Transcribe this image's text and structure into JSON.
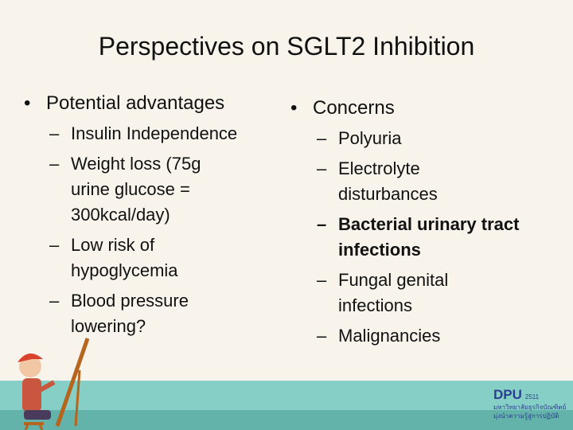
{
  "slide": {
    "title": "Perspectives on SGLT2 Inhibition",
    "left": {
      "heading": "Potential advantages",
      "items": [
        "Insulin Independence",
        "Weight loss (75g urine glucose = 300kcal/day)",
        "Low risk of hypoglycemia",
        "Blood pressure lowering?"
      ]
    },
    "right": {
      "heading": "Concerns",
      "items": [
        "Polyuria",
        "Electrolyte disturbances",
        "Bacterial urinary tract infections",
        "Fungal genital infections",
        "Malignancies"
      ]
    },
    "logo": {
      "name": "DPU",
      "year": "2511",
      "line1": "มหาวิทยาลัยธุรกิจบัณฑิตย์",
      "line2": "มุ่งนำความรู้สู่การปฏิบัติ"
    }
  }
}
